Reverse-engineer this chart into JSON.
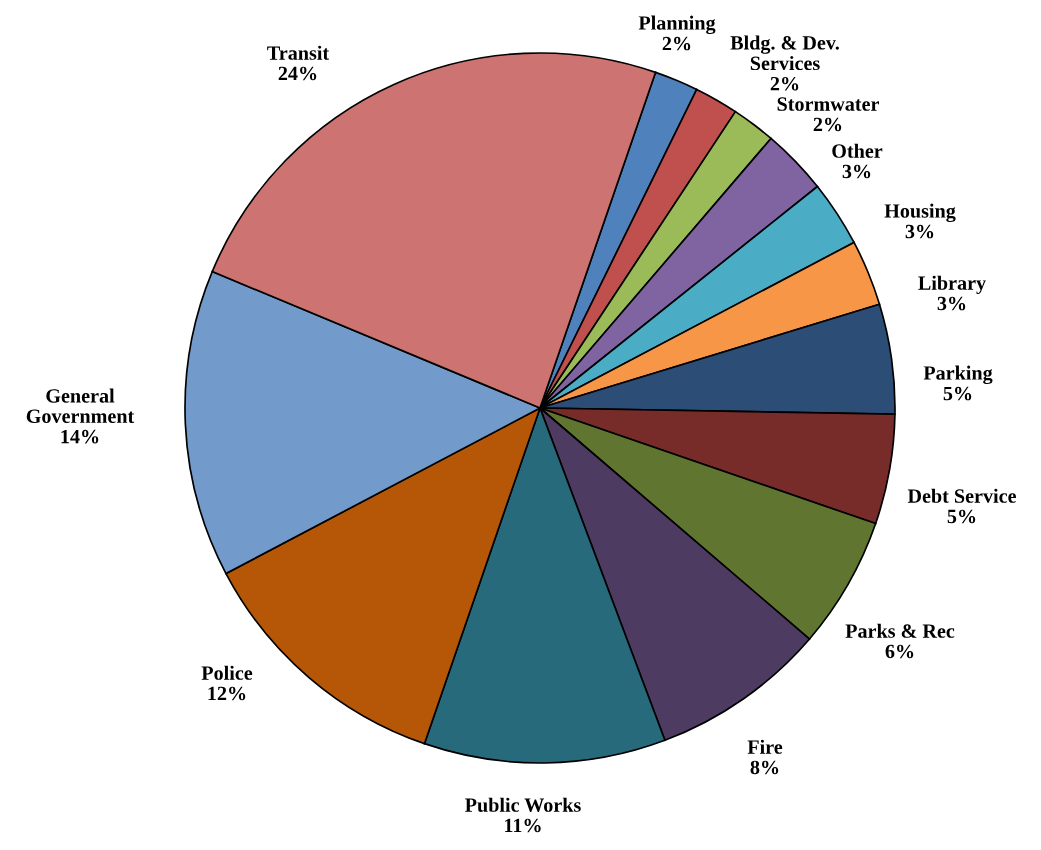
{
  "chart_data": {
    "type": "pie",
    "categories": [
      "Planning",
      "Bldg. & Dev.\nServices",
      "Stormwater",
      "Other",
      "Housing",
      "Library",
      "Parking",
      "Debt Service",
      "Parks & Rec",
      "Fire",
      "Public Works",
      "Police",
      "General\nGovernment",
      "Transit"
    ],
    "values": [
      2,
      2,
      2,
      3,
      3,
      3,
      5,
      5,
      6,
      8,
      11,
      12,
      14,
      24
    ],
    "value_labels": [
      "2%",
      "2%",
      "2%",
      "3%",
      "3%",
      "3%",
      "5%",
      "5%",
      "6%",
      "8%",
      "11%",
      "12%",
      "14%",
      "24%"
    ],
    "colors": [
      "#4f81bd",
      "#c0504d",
      "#9bbb59",
      "#8064a2",
      "#4bacc6",
      "#f79646",
      "#2c4d75",
      "#772c2a",
      "#5f7530",
      "#4d3b62",
      "#276a7c",
      "#b65708",
      "#729aca",
      "#cd7371"
    ],
    "legend": false
  }
}
